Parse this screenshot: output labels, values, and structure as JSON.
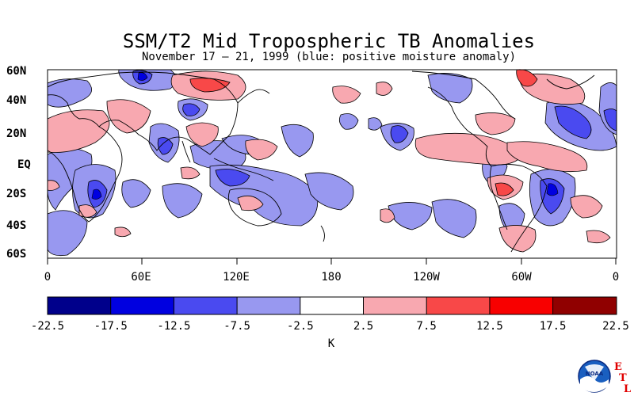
{
  "title": "SSM/T2 Mid Tropospheric TB Anomalies",
  "subtitle": "November 17 – 21, 1999 (blue: positive moisture anomaly)",
  "lat_labels": [
    "60N",
    "40N",
    "20N",
    "EQ",
    "20S",
    "40S",
    "60S"
  ],
  "lon_labels": [
    "0",
    "60E",
    "120E",
    "180",
    "120W",
    "60W",
    "0"
  ],
  "colorbar": {
    "tick_labels": [
      "-22.5",
      "-17.5",
      "-12.5",
      "-7.5",
      "-2.5",
      "2.5",
      "7.5",
      "12.5",
      "17.5",
      "22.5"
    ],
    "colors": [
      "#00008b",
      "#0000e0",
      "#4a4af0",
      "#9898f0",
      "#ffffff",
      "#f8a8b0",
      "#f84848",
      "#f81818",
      "#f80000",
      "#900000"
    ],
    "unit": "K"
  },
  "logo": {
    "name": "NOAA",
    "letters": [
      "E",
      "T",
      "L"
    ]
  }
}
